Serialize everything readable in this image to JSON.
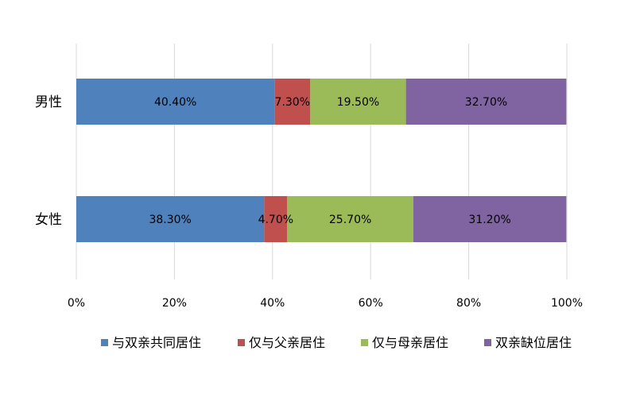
{
  "chart_data": {
    "type": "bar",
    "orientation": "horizontal",
    "stacked": "percent",
    "categories": [
      "男性",
      "女性"
    ],
    "series": [
      {
        "name": "与双亲共同居住",
        "color": "#4F81BD",
        "values": [
          40.4,
          38.3
        ],
        "labels": [
          "40.40%",
          "38.30%"
        ]
      },
      {
        "name": "仅与父亲居住",
        "color": "#C0504D",
        "values": [
          7.3,
          4.7
        ],
        "labels": [
          "7.30%",
          "4.70%"
        ]
      },
      {
        "name": "仅与母亲居住",
        "color": "#9BBB59",
        "values": [
          19.5,
          25.7
        ],
        "labels": [
          "19.50%",
          "25.70%"
        ]
      },
      {
        "name": "双亲缺位居住",
        "color": "#8064A2",
        "values": [
          32.7,
          31.2
        ],
        "labels": [
          "32.70%",
          "31.20%"
        ]
      }
    ],
    "x_ticks": [
      "0%",
      "20%",
      "40%",
      "60%",
      "80%",
      "100%"
    ],
    "xlim": [
      0,
      100
    ],
    "grid": true,
    "legend_position": "bottom",
    "title": "",
    "xlabel": "",
    "ylabel": ""
  }
}
